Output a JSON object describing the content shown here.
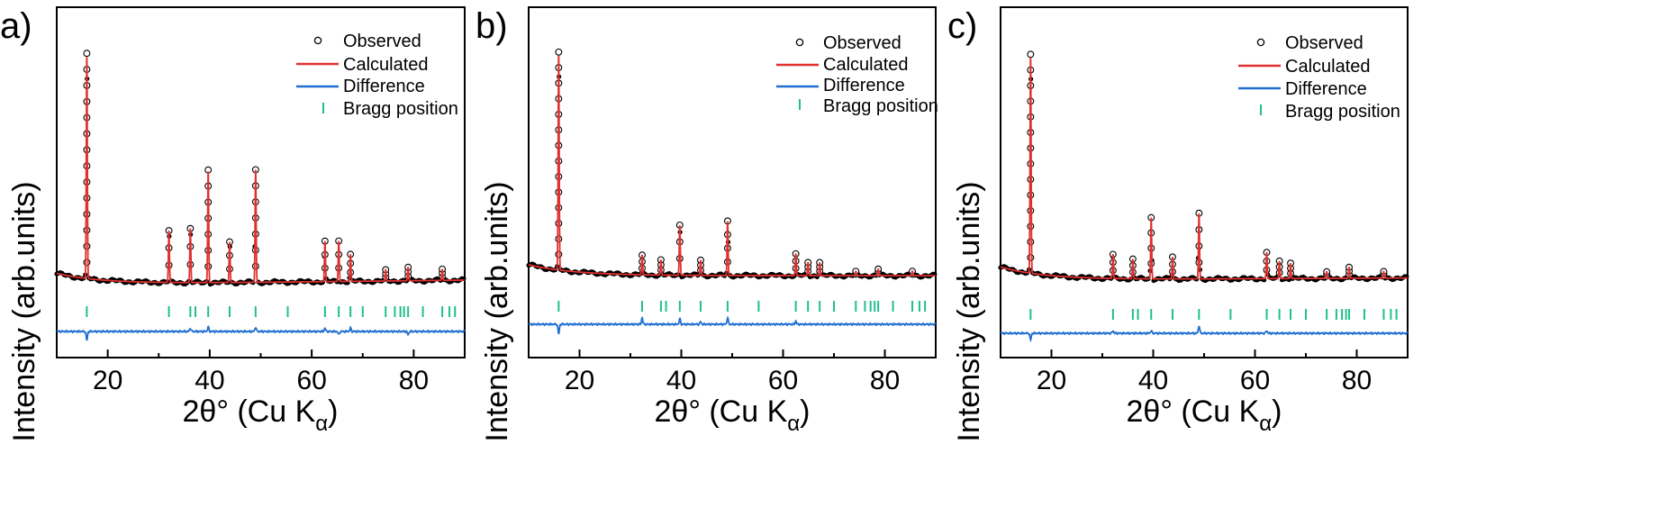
{
  "figure": {
    "panels": [
      {
        "letter": "a)"
      },
      {
        "letter": "b)"
      },
      {
        "letter": "c)"
      }
    ]
  },
  "axes": {
    "ylabel": "Intensity (arb.units)",
    "xlabel_main": "2θ° (Cu K",
    "xlabel_sub": "α",
    "xlabel_close": ")",
    "xticks": [
      "20",
      "40",
      "60",
      "80"
    ]
  },
  "legend": {
    "observed": "Observed",
    "calculated": "Calculated",
    "difference": "Difference",
    "bragg": "Bragg position"
  },
  "colors": {
    "observed": "#000000",
    "calculated": "#e0312f",
    "difference": "#1f6fd1",
    "bragg": "#1fbf8f"
  },
  "chart_data": [
    {
      "type": "line",
      "panel": "a)",
      "xlim": [
        10,
        90
      ],
      "ylim": [
        -0.25,
        1.1
      ],
      "xlabel": "2θ° (Cu Kα)",
      "ylabel": "Intensity (arb.units)",
      "series": [
        {
          "name": "Observed"
        },
        {
          "name": "Calculated"
        },
        {
          "name": "Difference"
        },
        {
          "name": "Bragg position"
        }
      ],
      "background": {
        "start": 0.05,
        "mid": -0.02,
        "end": 0.0
      },
      "peaks": [
        {
          "x": 15.9,
          "y": 1.0
        },
        {
          "x": 32.0,
          "y": 0.23
        },
        {
          "x": 36.2,
          "y": 0.24
        },
        {
          "x": 39.7,
          "y": 0.5
        },
        {
          "x": 43.9,
          "y": 0.18
        },
        {
          "x": 49.0,
          "y": 0.5
        },
        {
          "x": 62.6,
          "y": 0.18
        },
        {
          "x": 65.3,
          "y": 0.18
        },
        {
          "x": 67.6,
          "y": 0.12
        },
        {
          "x": 74.5,
          "y": 0.05
        },
        {
          "x": 78.9,
          "y": 0.06
        },
        {
          "x": 85.6,
          "y": 0.05
        }
      ],
      "bragg_positions": [
        15.9,
        32.0,
        36.2,
        37.2,
        39.7,
        43.9,
        49.0,
        55.3,
        62.6,
        65.3,
        67.6,
        70.0,
        74.5,
        76.3,
        77.4,
        78.1,
        78.9,
        81.8,
        85.6,
        87.0,
        88.1
      ],
      "difference_spikes": [
        {
          "x": 15.9,
          "d": -0.04
        },
        {
          "x": 36.2,
          "d": 0.015
        },
        {
          "x": 39.7,
          "d": 0.02
        },
        {
          "x": 49.0,
          "d": 0.02
        },
        {
          "x": 62.6,
          "d": 0.015
        },
        {
          "x": 65.3,
          "d": -0.015
        },
        {
          "x": 67.6,
          "d": 0.015
        },
        {
          "x": 78.9,
          "d": -0.015
        }
      ]
    },
    {
      "type": "line",
      "panel": "b)",
      "xlim": [
        10,
        90
      ],
      "ylim": [
        -0.25,
        1.1
      ],
      "xlabel": "2θ° (Cu Kα)",
      "ylabel": "Intensity (arb.units)",
      "series": [
        {
          "name": "Observed"
        },
        {
          "name": "Calculated"
        },
        {
          "name": "Difference"
        },
        {
          "name": "Bragg position"
        }
      ],
      "background": {
        "start": 0.05,
        "mid": 0.0,
        "end": 0.0
      },
      "peaks": [
        {
          "x": 15.9,
          "y": 1.0
        },
        {
          "x": 32.3,
          "y": 0.09
        },
        {
          "x": 36.0,
          "y": 0.07
        },
        {
          "x": 39.7,
          "y": 0.23
        },
        {
          "x": 43.8,
          "y": 0.07
        },
        {
          "x": 49.1,
          "y": 0.25
        },
        {
          "x": 62.5,
          "y": 0.1
        },
        {
          "x": 64.9,
          "y": 0.06
        },
        {
          "x": 67.2,
          "y": 0.06
        },
        {
          "x": 74.3,
          "y": 0.02
        },
        {
          "x": 78.7,
          "y": 0.03
        },
        {
          "x": 85.4,
          "y": 0.02
        }
      ],
      "bragg_positions": [
        15.9,
        32.3,
        36.0,
        37.0,
        39.7,
        43.8,
        49.1,
        55.2,
        62.5,
        64.9,
        67.2,
        70.0,
        74.3,
        76.1,
        77.2,
        78.0,
        78.7,
        81.6,
        85.4,
        86.8,
        87.9
      ],
      "difference_spikes": [
        {
          "x": 15.9,
          "d": -0.045
        },
        {
          "x": 32.3,
          "d": 0.03
        },
        {
          "x": 39.7,
          "d": 0.025
        },
        {
          "x": 43.8,
          "d": 0.012
        },
        {
          "x": 49.1,
          "d": 0.03
        },
        {
          "x": 62.5,
          "d": 0.015
        }
      ]
    },
    {
      "type": "line",
      "panel": "c)",
      "xlim": [
        10,
        90
      ],
      "ylim": [
        -0.25,
        1.1
      ],
      "xlabel": "2θ° (Cu Kα)",
      "ylabel": "Intensity (arb.units)",
      "series": [
        {
          "name": "Observed"
        },
        {
          "name": "Calculated"
        },
        {
          "name": "Difference"
        },
        {
          "name": "Bragg position"
        }
      ],
      "background": {
        "start": 0.06,
        "mid": 0.0,
        "end": 0.01
      },
      "peaks": [
        {
          "x": 15.9,
          "y": 1.0
        },
        {
          "x": 32.1,
          "y": 0.11
        },
        {
          "x": 36.0,
          "y": 0.09
        },
        {
          "x": 39.6,
          "y": 0.28
        },
        {
          "x": 43.8,
          "y": 0.1
        },
        {
          "x": 49.0,
          "y": 0.3
        },
        {
          "x": 62.3,
          "y": 0.12
        },
        {
          "x": 64.8,
          "y": 0.08
        },
        {
          "x": 67.0,
          "y": 0.07
        },
        {
          "x": 74.1,
          "y": 0.03
        },
        {
          "x": 78.5,
          "y": 0.05
        },
        {
          "x": 85.3,
          "y": 0.03
        }
      ],
      "bragg_positions": [
        15.9,
        32.1,
        36.0,
        37.0,
        39.6,
        43.8,
        49.0,
        55.2,
        62.3,
        64.8,
        67.0,
        70.0,
        74.1,
        76.0,
        77.1,
        77.9,
        78.5,
        81.5,
        85.3,
        86.7,
        87.8
      ],
      "difference_spikes": [
        {
          "x": 15.9,
          "d": -0.03
        },
        {
          "x": 32.1,
          "d": 0.012
        },
        {
          "x": 39.6,
          "d": 0.012
        },
        {
          "x": 49.0,
          "d": 0.035
        },
        {
          "x": 62.3,
          "d": 0.012
        }
      ]
    }
  ]
}
